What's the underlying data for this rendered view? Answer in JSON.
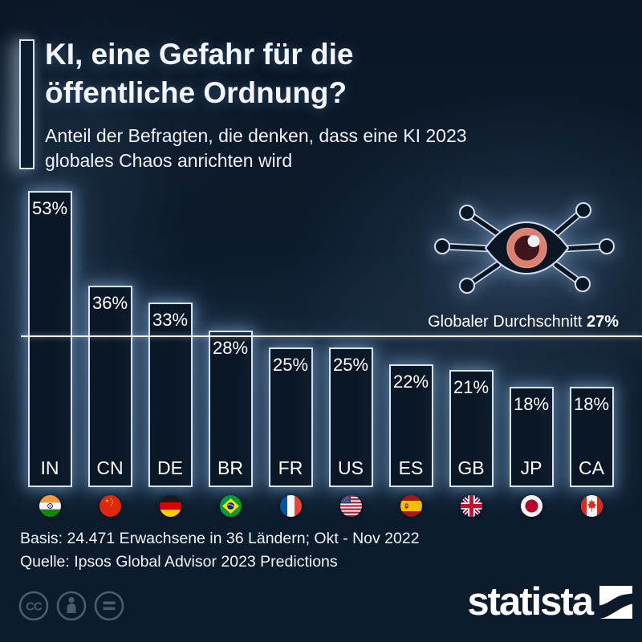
{
  "header": {
    "title_line1": "KI, eine Gefahr für die",
    "title_line2": "öffentliche Ordnung?",
    "subtitle_line1": "Anteil der Befragten, die denken, dass eine KI 2023",
    "subtitle_line2": "globales Chaos anrichten wird"
  },
  "annotation": {
    "average_label": "Globaler Durchschnitt ",
    "average_value": "27%"
  },
  "chart_data": {
    "type": "bar",
    "title": "KI, eine Gefahr für die öffentliche Ordnung?",
    "subtitle": "Anteil der Befragten, die denken, dass eine KI 2023 globales Chaos anrichten wird",
    "categories": [
      "IN",
      "CN",
      "DE",
      "BR",
      "FR",
      "US",
      "ES",
      "GB",
      "JP",
      "CA"
    ],
    "values": [
      53,
      36,
      33,
      28,
      25,
      25,
      22,
      21,
      18,
      18
    ],
    "value_labels": [
      "53%",
      "36%",
      "33%",
      "28%",
      "25%",
      "25%",
      "22%",
      "21%",
      "18%",
      "18%"
    ],
    "flags": [
      "india-flag",
      "china-flag",
      "germany-flag",
      "brazil-flag",
      "france-flag",
      "usa-flag",
      "spain-flag",
      "uk-flag",
      "japan-flag",
      "canada-flag"
    ],
    "unit": "%",
    "average": 27,
    "average_annotation": "Globaler Durchschnitt 27%",
    "ylim": [
      0,
      55
    ],
    "grid": false,
    "legend": "none",
    "bar_fill": "#0a1726",
    "bar_border": "#d9e6f2",
    "glow_color": "#9cc4e8",
    "background": "#0c1b2c",
    "average_line_color": "#f0f5fa"
  },
  "eye_icon": {
    "name": "cyber-eye-icon",
    "iris_color": "#dd8072",
    "pupil_color": "#3f161d",
    "body_color": "#0b1624",
    "outline_color": "#d3e2ef"
  },
  "footer": {
    "basis": "Basis: 24.471 Erwachsene in 36 Ländern; Okt - Nov 2022",
    "quelle": "Quelle: Ipsos Global Advisor 2023 Predictions"
  },
  "license": {
    "icons": [
      "cc-icon",
      "attribution-icon",
      "no-derivatives-icon"
    ],
    "icon_color": "#4c5c6a"
  },
  "branding": {
    "logo_text": "statista",
    "logo_color": "#ffffff"
  }
}
